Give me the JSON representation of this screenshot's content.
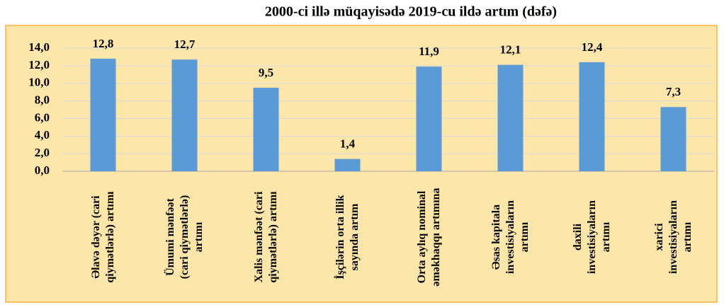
{
  "chart_data": {
    "type": "bar",
    "title": "2000-ci illə müqayisədə 2019-cu ildə artım (dəfə)",
    "categories": [
      "Əlavə dəyər (cari qiymətlərlə) artımı",
      "Ümumi mənfəət (cari qiymətlərlə) artımı",
      "Xalis mənfəət (cari qiymətlərlə) artımı",
      "İşçilərin orta illik sayında artım",
      "Orta aylıq nominal əməkhaqqı artımına",
      "Əsas kapitala investisiyaların artımı",
      "daxili investisiyaların artımı",
      "xarici investisiyaların artımı"
    ],
    "values": [
      12.8,
      12.7,
      9.5,
      1.4,
      11.9,
      12.1,
      12.4,
      7.3
    ],
    "value_labels": [
      "12,8",
      "12,7",
      "9,5",
      "1,4",
      "11,9",
      "12,1",
      "12,4",
      "7,3"
    ],
    "color": "#5b9bd5",
    "ylim": [
      0,
      14
    ],
    "yticks": [
      {
        "value": 0,
        "label": "0,0"
      },
      {
        "value": 2,
        "label": "2,0"
      },
      {
        "value": 4,
        "label": "4,0"
      },
      {
        "value": 6,
        "label": "6,0"
      },
      {
        "value": 8,
        "label": "8,0"
      },
      {
        "value": 10,
        "label": "10,0"
      },
      {
        "value": 12,
        "label": "12,0"
      },
      {
        "value": 14,
        "label": "14,0"
      }
    ],
    "grid": true
  }
}
